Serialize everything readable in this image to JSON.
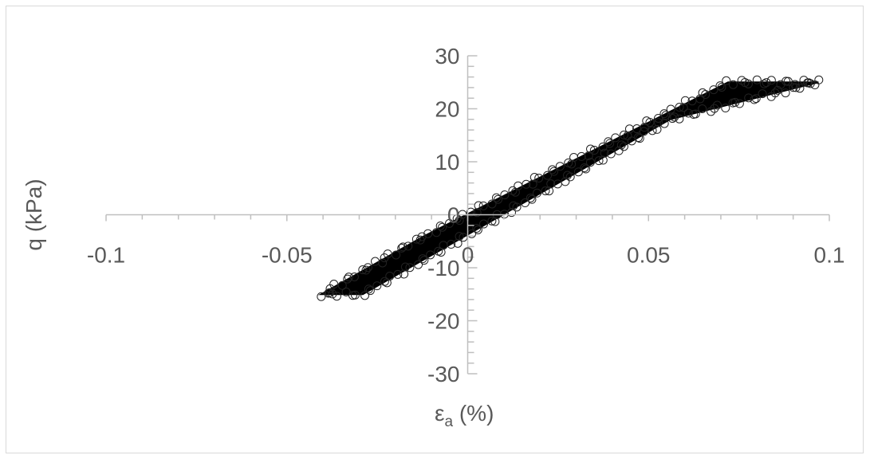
{
  "chart_data": {
    "type": "scatter",
    "title": "",
    "xlabel_main": "ε",
    "xlabel_sub": "a",
    "xlabel_unit": " (%)",
    "ylabel": "q (kPa)",
    "xlim": [
      -0.1,
      0.1
    ],
    "ylim": [
      -30,
      30
    ],
    "x_ticks": [
      -0.1,
      -0.05,
      0,
      0.05,
      0.1
    ],
    "x_tick_labels": [
      "-0.1",
      "-0.05",
      "0",
      "0.05",
      "0.1"
    ],
    "y_ticks": [
      -30,
      -20,
      -10,
      0,
      10,
      20,
      30
    ],
    "y_tick_labels": [
      "-30",
      "-20",
      "-10",
      "0",
      "10",
      "20",
      "30"
    ],
    "grid": false,
    "legend": "none",
    "marker": "open-circle",
    "series": [
      {
        "region_outline": [
          [
            -0.0405,
            -15
          ],
          [
            -0.029,
            -15
          ],
          [
            0.056,
            18
          ],
          [
            0.097,
            25
          ],
          [
            0.072,
            25
          ],
          [
            -0.012,
            -4
          ]
        ],
        "centerline": [
          [
            -0.035,
            -15
          ],
          [
            0.0,
            -2
          ],
          [
            0.05,
            12
          ],
          [
            0.084,
            25
          ]
        ]
      }
    ]
  }
}
